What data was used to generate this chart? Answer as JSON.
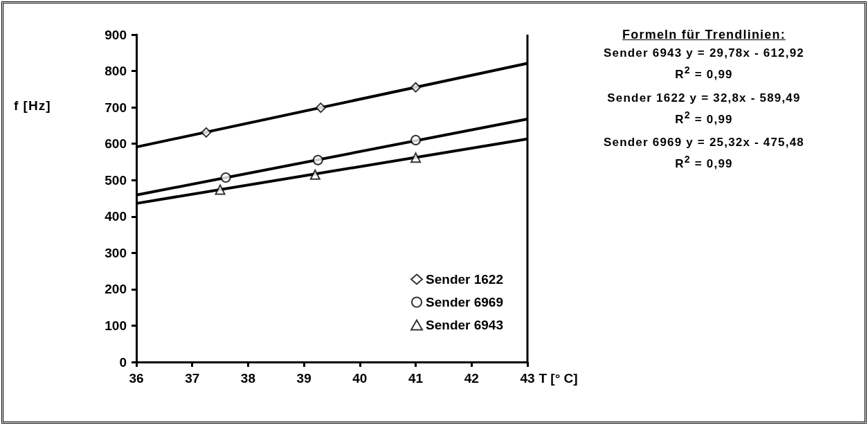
{
  "chart_data": {
    "type": "scatter",
    "title": "Formeln für Trendlinien:",
    "xlabel": "T [° C]",
    "ylabel": "f [Hz]",
    "xlim": [
      36,
      43
    ],
    "xticks": [
      36,
      37,
      38,
      39,
      40,
      41,
      42,
      43
    ],
    "ylim": [
      0,
      900
    ],
    "yticks": [
      0,
      100,
      200,
      300,
      400,
      500,
      600,
      700,
      800,
      900
    ],
    "grid": false,
    "legend": "bottom right",
    "annotations": [
      "Sender 6943  y = 29,78x - 612,92",
      "R$^{2}$ = 0,99",
      "Sender 1622  y = 32,8x - 589,49",
      "R$^{2}$ = 0,99",
      "Sender 6969  y = 25,32x - 475,48",
      "R$^{2}$ = 0,99"
    ],
    "series": [
      {
        "name": "Sender 1622",
        "color": "#000000",
        "marker": "diamond",
        "x": [
          37.25,
          39.3,
          41.0
        ],
        "values": [
          631,
          699,
          755
        ]
      },
      {
        "name": "Sender 6969",
        "color": "#000000",
        "marker": "circle",
        "x": [
          37.6,
          39.25,
          41.0
        ],
        "values": [
          507,
          555,
          610
        ]
      },
      {
        "name": "Sender 6943",
        "color": "#000000",
        "marker": "triangle",
        "x": [
          37.5,
          39.2,
          41.0
        ],
        "values": [
          474,
          515,
          562
        ]
      },
      {
        "type": "line",
        "color": "#000000",
        "marker": "none",
        "line_style": "solid",
        "x": [
          36,
          43
        ],
        "values": [
          591,
          821
        ]
      },
      {
        "type": "line",
        "color": "#000000",
        "marker": "none",
        "line_style": "solid",
        "x": [
          36,
          43
        ],
        "values": [
          459,
          668
        ]
      },
      {
        "type": "line",
        "color": "#000000",
        "marker": "none",
        "line_style": "solid",
        "x": [
          36,
          43
        ],
        "values": [
          436,
          613
        ]
      }
    ]
  }
}
